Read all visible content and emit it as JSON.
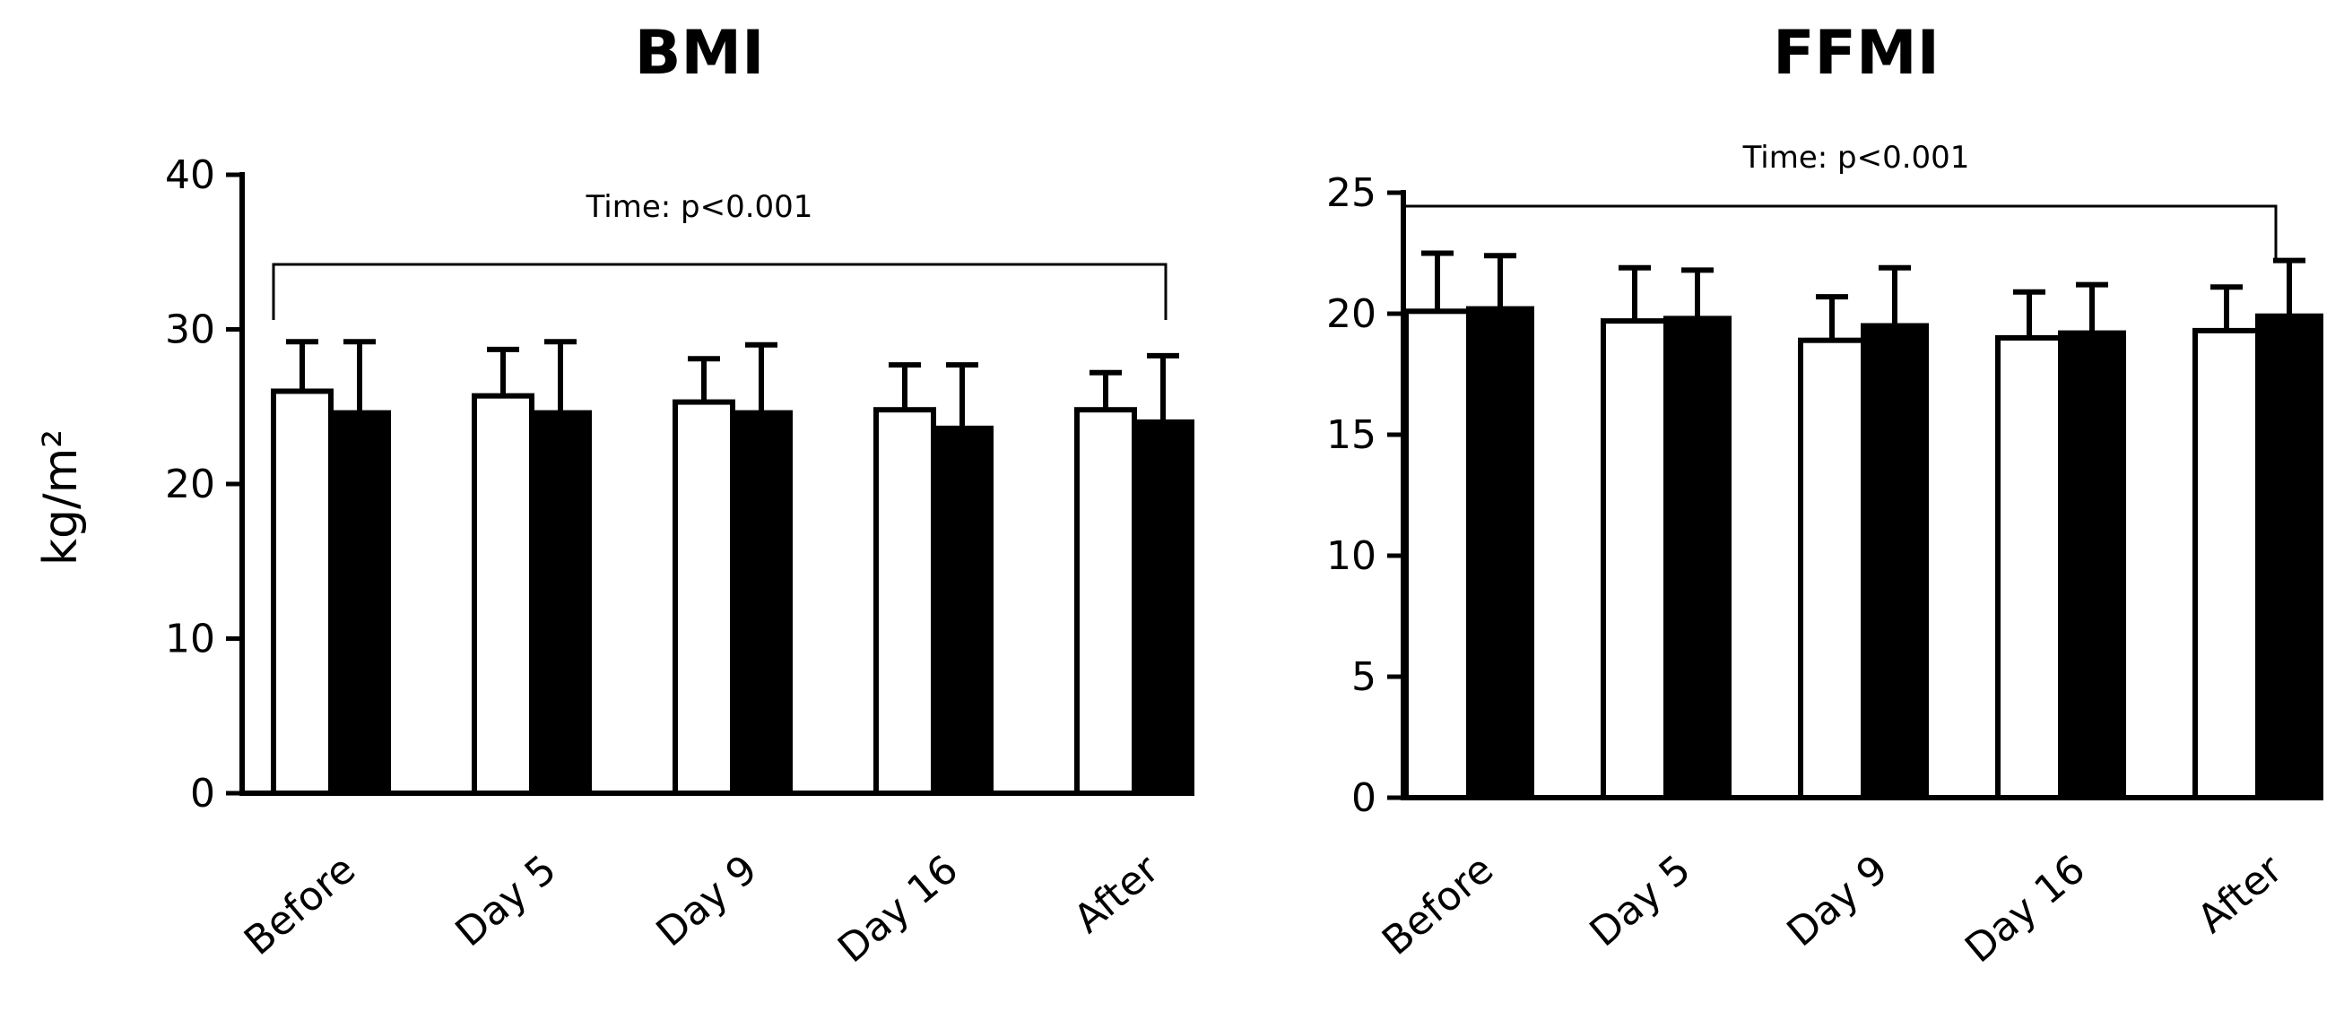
{
  "chart_data": [
    {
      "type": "bar",
      "title": "BMI",
      "ylabel": "kg/m²",
      "xlabel": "",
      "ylim": [
        0,
        40
      ],
      "yticks": [
        0,
        10,
        20,
        30,
        40
      ],
      "categories": [
        "Before",
        "Day 5",
        "Day 9",
        "Day 16",
        "After"
      ],
      "series": [
        {
          "name": "open bars",
          "color": "#ffffff",
          "values": [
            26.0,
            25.7,
            25.3,
            24.8,
            24.8
          ],
          "errors": [
            3.2,
            3.0,
            2.8,
            2.9,
            2.4
          ]
        },
        {
          "name": "filled bars",
          "color": "#000000",
          "values": [
            24.6,
            24.6,
            24.6,
            23.6,
            24.0
          ],
          "errors": [
            4.6,
            4.6,
            4.4,
            4.1,
            4.3
          ]
        }
      ],
      "annotation": "Time: p<0.001"
    },
    {
      "type": "bar",
      "title": "FFMI",
      "ylabel": "",
      "xlabel": "",
      "ylim": [
        0,
        25
      ],
      "yticks": [
        0,
        5,
        10,
        15,
        20,
        25
      ],
      "categories": [
        "Before",
        "Day 5",
        "Day 9",
        "Day 16",
        "After"
      ],
      "series": [
        {
          "name": "open bars",
          "color": "#ffffff",
          "values": [
            20.1,
            19.7,
            18.9,
            19.0,
            19.3
          ],
          "errors": [
            2.4,
            2.2,
            1.8,
            1.9,
            1.8
          ]
        },
        {
          "name": "filled bars",
          "color": "#000000",
          "values": [
            20.2,
            19.8,
            19.5,
            19.2,
            19.9
          ],
          "errors": [
            2.2,
            2.0,
            2.4,
            2.0,
            2.3
          ]
        }
      ],
      "annotation": "Time: p<0.001"
    }
  ]
}
